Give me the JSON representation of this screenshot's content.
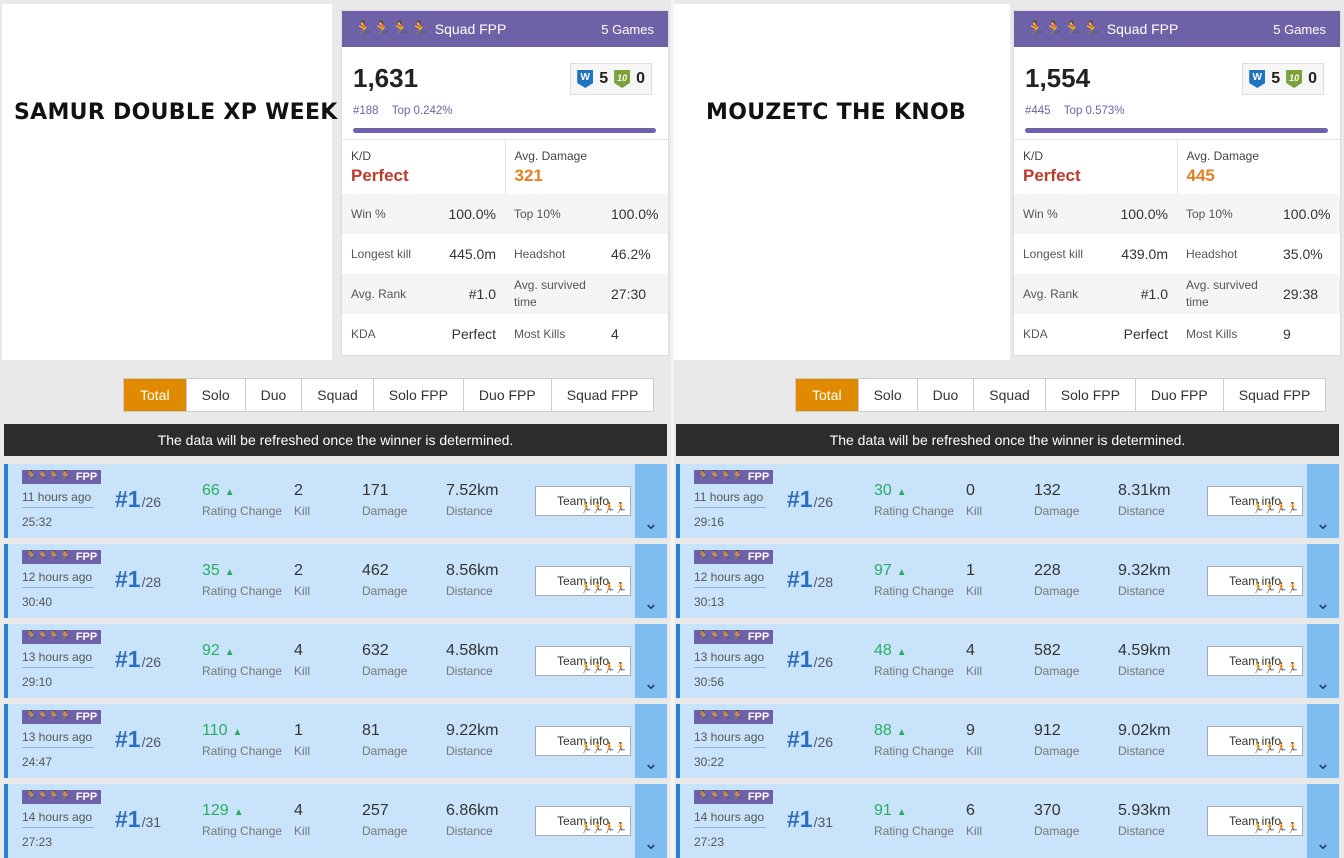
{
  "tabs": [
    "Total",
    "Solo",
    "Duo",
    "Squad",
    "Solo FPP",
    "Duo FPP",
    "Squad FPP"
  ],
  "notice": "The data will be refreshed once the winner is determined.",
  "team_info_label": "Team info",
  "labels": {
    "kd": "K/D",
    "avg_damage": "Avg. Damage",
    "win_pct": "Win %",
    "top10": "Top 10%",
    "longest_kill": "Longest kill",
    "headshot": "Headshot",
    "avg_rank": "Avg. Rank",
    "avg_survived": "Avg. survived time",
    "kda": "KDA",
    "most_kills": "Most Kills",
    "rating_change": "Rating Change",
    "kill": "Kill",
    "damage": "Damage",
    "distance": "Distance"
  },
  "colors": {
    "accent_purple": "#6f61a8",
    "tab_active": "#e08a00",
    "match_bg": "#c9e4fa",
    "rating_up": "#27ae60",
    "kd_red": "#c0392b",
    "damage_orange": "#e67e22"
  },
  "players": [
    {
      "nickname": "SAMUR DOUBLE XP WEEK",
      "mode": "Squad FPP",
      "games": "5 Games",
      "rating": "1,631",
      "rank": "#188",
      "top_pct": "Top 0.242%",
      "wins_icon": "W",
      "wins": "5",
      "top10_icon": "10",
      "top10s": "0",
      "kd": "Perfect",
      "avg_damage": "321",
      "win_pct": "100.0%",
      "top10_pct": "100.0%",
      "longest_kill": "445.0m",
      "headshot": "46.2%",
      "avg_rank": "#1.0",
      "avg_survived": "27:30",
      "kda": "Perfect",
      "most_kills": "4",
      "matches": [
        {
          "badge_mode": "FPP",
          "ago": "11 hours ago",
          "duration": "25:32",
          "place": "#1",
          "of": "/26",
          "rating_change": "66",
          "kill": "2",
          "damage": "171",
          "distance": "7.52km"
        },
        {
          "badge_mode": "FPP",
          "ago": "12 hours ago",
          "duration": "30:40",
          "place": "#1",
          "of": "/28",
          "rating_change": "35",
          "kill": "2",
          "damage": "462",
          "distance": "8.56km"
        },
        {
          "badge_mode": "FPP",
          "ago": "13 hours ago",
          "duration": "29:10",
          "place": "#1",
          "of": "/26",
          "rating_change": "92",
          "kill": "4",
          "damage": "632",
          "distance": "4.58km"
        },
        {
          "badge_mode": "FPP",
          "ago": "13 hours ago",
          "duration": "24:47",
          "place": "#1",
          "of": "/26",
          "rating_change": "110",
          "kill": "1",
          "damage": "81",
          "distance": "9.22km"
        },
        {
          "badge_mode": "FPP",
          "ago": "14 hours ago",
          "duration": "27:23",
          "place": "#1",
          "of": "/31",
          "rating_change": "129",
          "kill": "4",
          "damage": "257",
          "distance": "6.86km"
        }
      ]
    },
    {
      "nickname": "MOUZETC THE KNOB",
      "mode": "Squad FPP",
      "games": "5 Games",
      "rating": "1,554",
      "rank": "#445",
      "top_pct": "Top 0.573%",
      "wins_icon": "W",
      "wins": "5",
      "top10_icon": "10",
      "top10s": "0",
      "kd": "Perfect",
      "avg_damage": "445",
      "win_pct": "100.0%",
      "top10_pct": "100.0%",
      "longest_kill": "439.0m",
      "headshot": "35.0%",
      "avg_rank": "#1.0",
      "avg_survived": "29:38",
      "kda": "Perfect",
      "most_kills": "9",
      "matches": [
        {
          "badge_mode": "FPP",
          "ago": "11 hours ago",
          "duration": "29:16",
          "place": "#1",
          "of": "/26",
          "rating_change": "30",
          "kill": "0",
          "damage": "132",
          "distance": "8.31km"
        },
        {
          "badge_mode": "FPP",
          "ago": "12 hours ago",
          "duration": "30:13",
          "place": "#1",
          "of": "/28",
          "rating_change": "97",
          "kill": "1",
          "damage": "228",
          "distance": "9.32km"
        },
        {
          "badge_mode": "FPP",
          "ago": "13 hours ago",
          "duration": "30:56",
          "place": "#1",
          "of": "/26",
          "rating_change": "48",
          "kill": "4",
          "damage": "582",
          "distance": "4.59km"
        },
        {
          "badge_mode": "FPP",
          "ago": "13 hours ago",
          "duration": "30:22",
          "place": "#1",
          "of": "/26",
          "rating_change": "88",
          "kill": "9",
          "damage": "912",
          "distance": "9.02km"
        },
        {
          "badge_mode": "FPP",
          "ago": "14 hours ago",
          "duration": "27:23",
          "place": "#1",
          "of": "/31",
          "rating_change": "91",
          "kill": "6",
          "damage": "370",
          "distance": "5.93km"
        }
      ]
    }
  ]
}
